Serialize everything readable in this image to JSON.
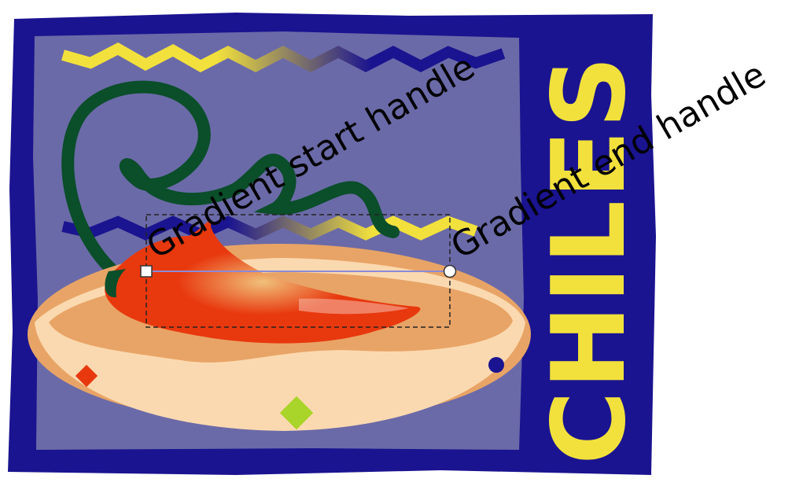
{
  "artwork": {
    "title_text": "CHILES",
    "colors": {
      "frame": "#1a1490",
      "inner_panel": "#6b6aa8",
      "wordmark": "#f2e13c",
      "pepper_body": "#e8380e",
      "pepper_stem": "#0a4e2a",
      "bowl_rim": "#e8a466",
      "bowl_inner": "#fbd9b0",
      "zigzag_yellow": "#f2e13c",
      "zigzag_blue": "#1a1490",
      "accent_red": "#e8380e",
      "accent_green": "#a9d42a",
      "accent_navy": "#1a1490",
      "gradient_line": "#8a8ad8",
      "selection_border": "#222222"
    }
  },
  "gradient_tool": {
    "start_label": "Gradient start handle",
    "end_label": "Gradient end handle"
  }
}
